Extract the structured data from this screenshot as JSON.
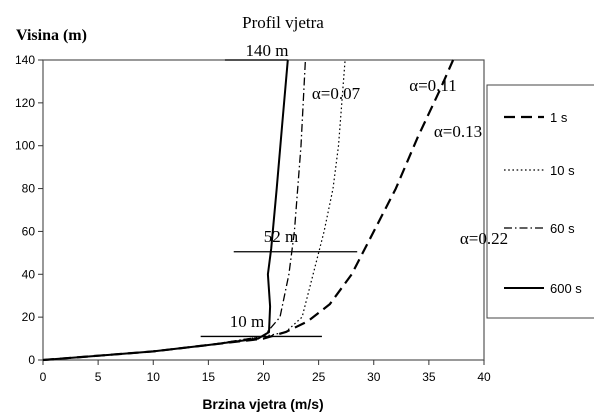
{
  "chart_data": {
    "type": "line",
    "title": "Profil vjetra",
    "xlabel": "Brzina vjetra (m/s)",
    "ylabel": "Visina (m)",
    "xlim": [
      0,
      40
    ],
    "ylim": [
      0,
      140
    ],
    "xticks": [
      "0",
      "5",
      "10",
      "15",
      "20",
      "25",
      "30",
      "35",
      "40"
    ],
    "yticks": [
      "0",
      "20",
      "40",
      "60",
      "80",
      "100",
      "120",
      "140"
    ],
    "grid": false,
    "legend_position": "right",
    "series": [
      {
        "name": "1 s",
        "style": "dashed",
        "color": "#000000",
        "points": [
          [
            0,
            0
          ],
          [
            5,
            2
          ],
          [
            10,
            4
          ],
          [
            15,
            7
          ],
          [
            20,
            10
          ],
          [
            22,
            13
          ],
          [
            24,
            18
          ],
          [
            26,
            26
          ],
          [
            28,
            40
          ],
          [
            30,
            60
          ],
          [
            32,
            80
          ],
          [
            34,
            104
          ],
          [
            36,
            126
          ],
          [
            37.2,
            140
          ]
        ]
      },
      {
        "name": "10 s",
        "style": "dotted",
        "color": "#000000",
        "points": [
          [
            0,
            0
          ],
          [
            5,
            2
          ],
          [
            10,
            4
          ],
          [
            15,
            7
          ],
          [
            20,
            11
          ],
          [
            22,
            13
          ],
          [
            23.5,
            20
          ],
          [
            24.5,
            40
          ],
          [
            25.5,
            60
          ],
          [
            26.3,
            80
          ],
          [
            26.8,
            100
          ],
          [
            27.1,
            120
          ],
          [
            27.4,
            140
          ]
        ]
      },
      {
        "name": "60 s",
        "style": "dashdot",
        "color": "#000000",
        "points": [
          [
            0,
            0
          ],
          [
            5,
            2
          ],
          [
            10,
            4
          ],
          [
            15,
            7
          ],
          [
            20,
            11
          ],
          [
            21.5,
            20
          ],
          [
            22.3,
            40
          ],
          [
            22.8,
            60
          ],
          [
            23.1,
            80
          ],
          [
            23.4,
            100
          ],
          [
            23.6,
            120
          ],
          [
            23.8,
            140
          ]
        ]
      },
      {
        "name": "600 s",
        "style": "solid",
        "color": "#000000",
        "points": [
          [
            0,
            0
          ],
          [
            5,
            2
          ],
          [
            10,
            4
          ],
          [
            15,
            7
          ],
          [
            19.5,
            10
          ],
          [
            20.5,
            13
          ],
          [
            20.6,
            25
          ],
          [
            20.4,
            40
          ],
          [
            20.7,
            52
          ],
          [
            21.2,
            80
          ],
          [
            21.7,
            110
          ],
          [
            22.2,
            140
          ]
        ]
      }
    ],
    "horizontal_markers": [
      {
        "label": "10 m",
        "y": 11,
        "x_from": 14.3,
        "x_to": 25.3
      },
      {
        "label": "52 m",
        "y": 50.5,
        "x_from": 17.3,
        "x_to": 28.5
      },
      {
        "label": "140 m",
        "y": 140,
        "x_from": 16.5,
        "x_to": 22.2
      }
    ],
    "annotations": [
      "α=0.07",
      "α=0.11",
      "α=0.13",
      "α=0.22"
    ]
  }
}
